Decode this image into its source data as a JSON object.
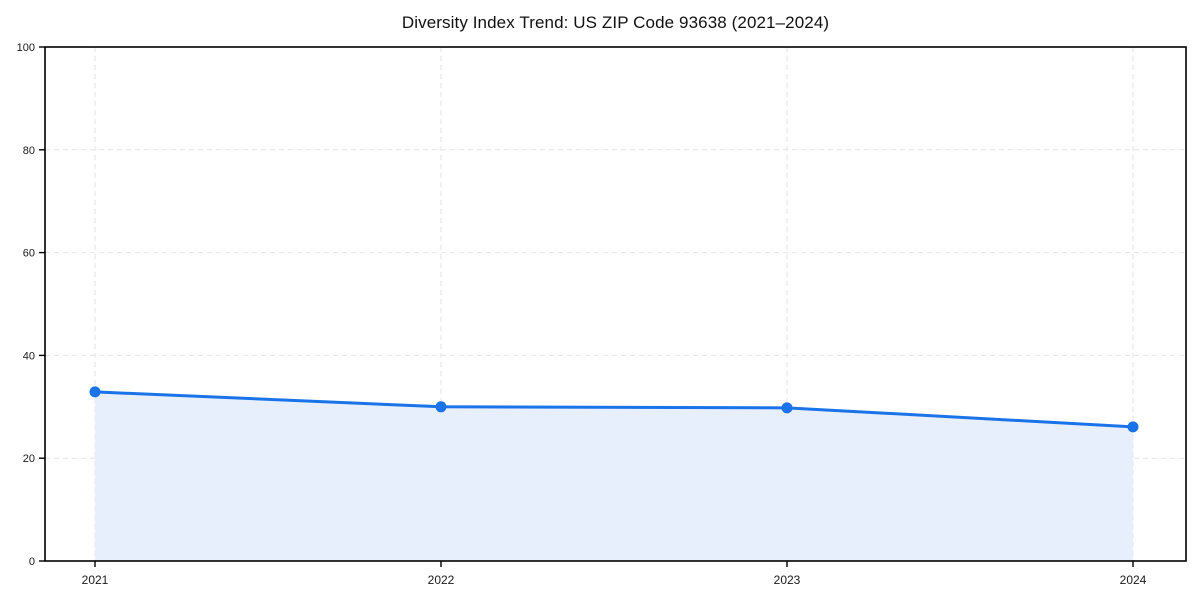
{
  "chart_data": {
    "type": "area",
    "title": "Diversity Index Trend: US ZIP Code 93638 (2021–2024)",
    "categories": [
      "2021",
      "2022",
      "2023",
      "2024"
    ],
    "values": [
      32.9,
      30.0,
      29.8,
      26.1
    ],
    "xlabel": "",
    "ylabel": "",
    "ylim": [
      0,
      100
    ],
    "yticks": [
      0,
      20,
      40,
      60,
      80,
      100
    ],
    "grid": true,
    "grid_style": "dashed",
    "legend": false,
    "colors": {
      "line": "#1a73e8",
      "marker": "#1a73e8",
      "fill": "#e8effc",
      "grid": "#e3e3e3",
      "axis": "#000000",
      "text": "#1a1a1a",
      "background": "#ffffff"
    }
  }
}
